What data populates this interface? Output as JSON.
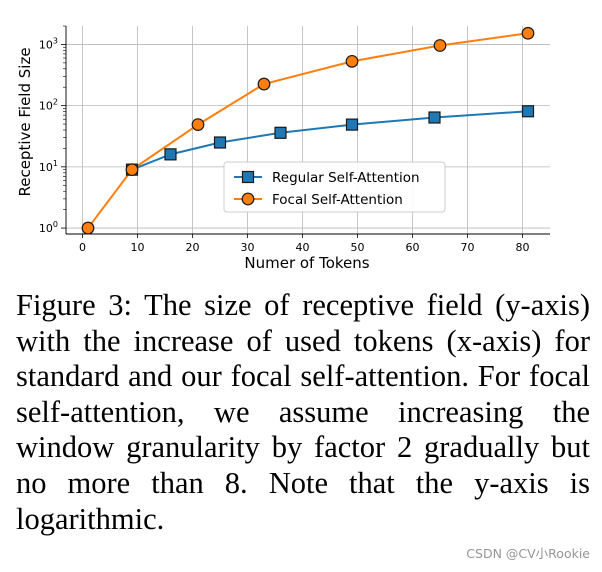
{
  "chart_data": {
    "type": "line",
    "title": "",
    "xlabel": "Numer of Tokens",
    "ylabel": "Receptive Field Size",
    "yscale": "log",
    "xlim": [
      -3,
      85
    ],
    "ylim": [
      0.8,
      2000
    ],
    "x_ticks": [
      0,
      10,
      20,
      30,
      40,
      50,
      60,
      70,
      80
    ],
    "y_ticks": [
      {
        "value": 1,
        "base": "10",
        "exp": "0"
      },
      {
        "value": 10,
        "base": "10",
        "exp": "1"
      },
      {
        "value": 100,
        "base": "10",
        "exp": "2"
      },
      {
        "value": 1000,
        "base": "10",
        "exp": "3"
      }
    ],
    "grid": true,
    "legend_position": "center",
    "series": [
      {
        "name": "Regular Self-Attention",
        "marker": "square",
        "color": "#1f77b4",
        "marker_edge": "#1a1a1a",
        "x": [
          9,
          16,
          25,
          36,
          49,
          64,
          81
        ],
        "y": [
          9,
          16,
          25,
          36,
          49,
          64,
          81
        ]
      },
      {
        "name": "Focal Self-Attention",
        "marker": "circle",
        "color": "#ff7f0e",
        "marker_edge": "#1a1a1a",
        "x": [
          1,
          9,
          21,
          33,
          49,
          65,
          81
        ],
        "y": [
          1,
          9,
          49,
          225,
          529,
          961,
          1521
        ]
      }
    ]
  },
  "caption": "Figure 3: The size of receptive field (y-axis) with the increase of used tokens (x-axis) for standard and our focal self-attention. For focal self-attention, we assume increasing the window granularity by factor 2 gradually but no more than 8. Note that the y-axis is logarithmic.",
  "watermark": "CSDN @CV小Rookie"
}
